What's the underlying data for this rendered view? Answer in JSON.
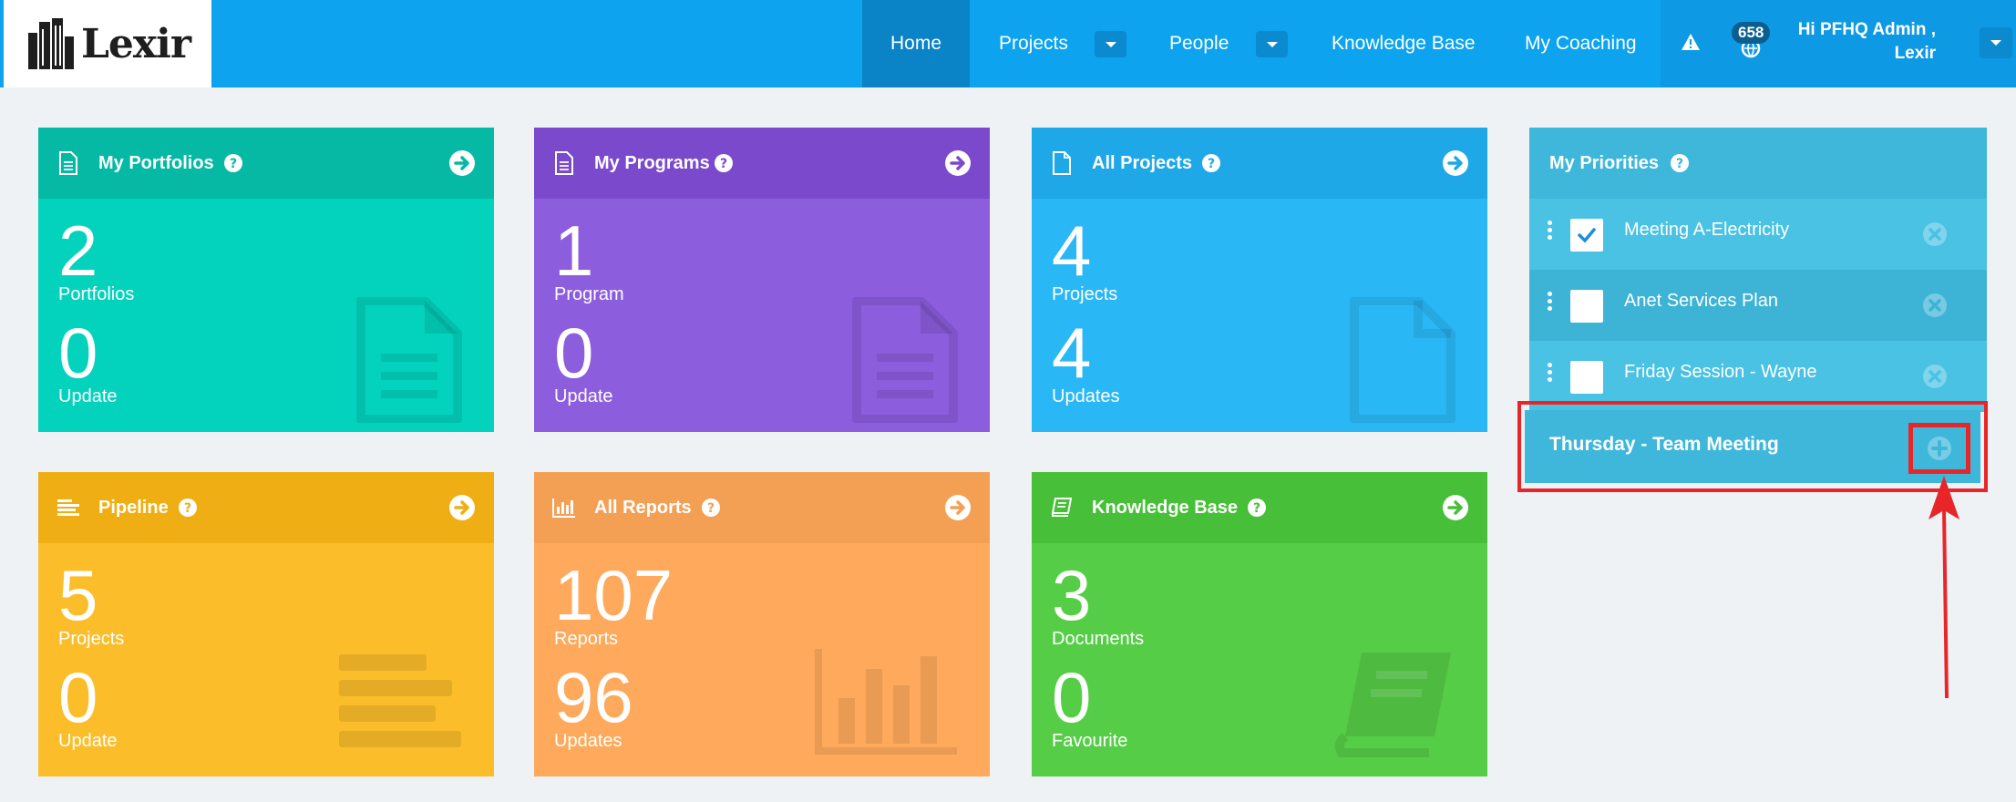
{
  "logo": {
    "text": "Lexir"
  },
  "nav": {
    "items": [
      {
        "label": "Home",
        "active": true
      },
      {
        "label": "Projects"
      },
      {
        "label": "People"
      },
      {
        "label": "Knowledge Base"
      },
      {
        "label": "My Coaching"
      }
    ],
    "notification_count": "658",
    "user_greeting_line1": "Hi PFHQ Admin ,",
    "user_greeting_line2": "Lexir"
  },
  "cards": [
    {
      "title": "My Portfolios",
      "value1": "2",
      "label1": "Portfolios",
      "value2": "0",
      "label2": "Update",
      "icon": "document-icon",
      "color": "#03d2bd"
    },
    {
      "title": "My Programs",
      "value1": "1",
      "label1": "Program",
      "value2": "0",
      "label2": "Update",
      "icon": "document-icon",
      "color": "#8c5ddd"
    },
    {
      "title": "All Projects",
      "value1": "4",
      "label1": "Projects",
      "value2": "4",
      "label2": "Updates",
      "icon": "file-icon",
      "color": "#2ab7f5"
    },
    {
      "title": "Pipeline",
      "value1": "5",
      "label1": "Projects",
      "value2": "0",
      "label2": "Update",
      "icon": "list-icon",
      "color": "#fbbe2a"
    },
    {
      "title": "All Reports",
      "value1": "107",
      "label1": "Reports",
      "value2": "96",
      "label2": "Updates",
      "icon": "bar-chart-icon",
      "color": "#fea95b"
    },
    {
      "title": "Knowledge Base",
      "value1": "3",
      "label1": "Documents",
      "value2": "0",
      "label2": "Favourite",
      "icon": "book-icon",
      "color": "#56cd47"
    }
  ],
  "priorities": {
    "title": "My Priorities",
    "items": [
      {
        "text": "Meeting A-Electricity",
        "checked": true
      },
      {
        "text": "Anet Services Plan",
        "checked": false
      },
      {
        "text": "Friday Session - Wayne",
        "checked": false
      }
    ],
    "new_item_text": "Thursday - Team Meeting"
  },
  "annotation_color": "#e8262a"
}
